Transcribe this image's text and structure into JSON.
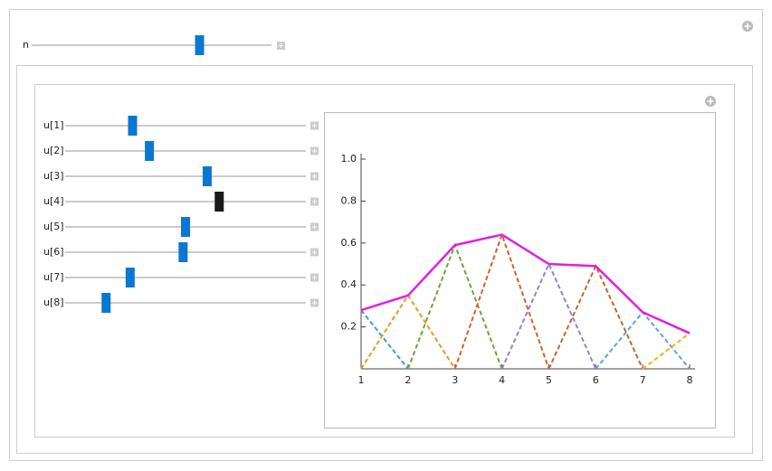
{
  "controls": {
    "n": {
      "label": "n",
      "value": 8,
      "range": [
        1,
        11
      ]
    },
    "sliders": [
      "u[1]",
      "u[2]",
      "u[3]",
      "u[4]",
      "u[5]",
      "u[6]",
      "u[7]",
      "u[8]"
    ],
    "slider_range": [
      0,
      1
    ]
  },
  "chart_data": {
    "type": "line",
    "x": [
      1,
      2,
      3,
      4,
      5,
      6,
      7,
      8
    ],
    "series": [
      {
        "color": "#3d9ccc",
        "dashed": true,
        "values": [
          0.28,
          0,
          null,
          null,
          null,
          null,
          null,
          null
        ]
      },
      {
        "color": "#e89a1c",
        "dashed": true,
        "values": [
          0,
          0.35,
          0,
          null,
          null,
          null,
          null,
          null
        ]
      },
      {
        "color": "#6aa83a",
        "dashed": true,
        "values": [
          null,
          0,
          0.59,
          0,
          null,
          null,
          null,
          null
        ]
      },
      {
        "color": "#d6602a",
        "dashed": true,
        "values": [
          null,
          null,
          0,
          0.64,
          0,
          null,
          null,
          null
        ]
      },
      {
        "color": "#8f83d4",
        "dashed": true,
        "values": [
          null,
          null,
          null,
          0,
          0.5,
          0,
          null,
          null
        ]
      },
      {
        "color": "#c8642a",
        "dashed": true,
        "values": [
          null,
          null,
          null,
          null,
          0,
          0.49,
          0,
          null
        ]
      },
      {
        "color": "#5aa4e2",
        "dashed": true,
        "values": [
          null,
          null,
          null,
          null,
          null,
          0,
          0.27,
          0
        ]
      },
      {
        "color": "#f0b020",
        "dashed": true,
        "values": [
          null,
          null,
          null,
          null,
          null,
          null,
          0,
          0.17
        ]
      },
      {
        "color": "#e21ee2",
        "dashed": false,
        "values": [
          0.28,
          0.35,
          0.59,
          0.64,
          0.5,
          0.49,
          0.27,
          0.17
        ]
      }
    ],
    "xlim": [
      1,
      8
    ],
    "ylim": [
      0,
      1
    ],
    "xticks": [
      1,
      2,
      3,
      4,
      5,
      6,
      7,
      8
    ],
    "yticks": [
      0.2,
      0.4,
      0.6,
      0.8,
      {
        "value": 1,
        "label": "1.0"
      }
    ]
  }
}
